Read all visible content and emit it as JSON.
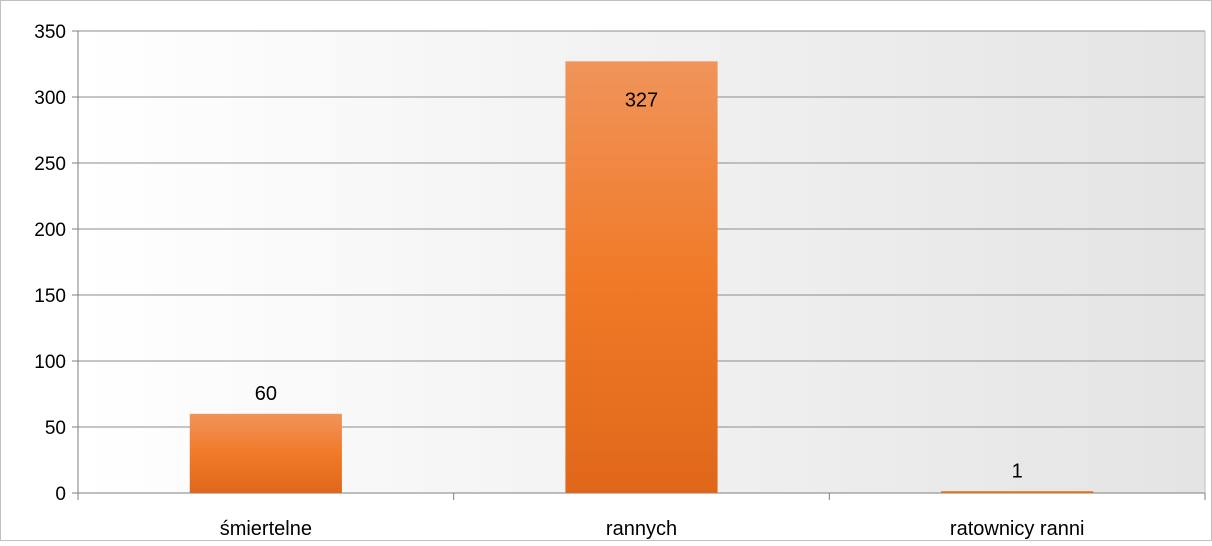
{
  "chart_data": {
    "type": "bar",
    "categories": [
      "śmiertelne",
      "rannych",
      "ratownicy ranni"
    ],
    "values": [
      60,
      327,
      1
    ],
    "data_labels": [
      "60",
      "327",
      "1"
    ],
    "title": "",
    "xlabel": "",
    "ylabel": "",
    "ylim": [
      0,
      350
    ],
    "yticks": [
      0,
      50,
      100,
      150,
      200,
      250,
      300,
      350
    ],
    "ytick_labels": [
      "0",
      "50",
      "100",
      "150",
      "200",
      "250",
      "300",
      "350"
    ],
    "grid": true,
    "legend": "none",
    "colors": {
      "bar_top": "#f0945a",
      "bar_mid": "#f07a28",
      "bar_bottom": "#e0671a",
      "grid": "#8c8c8c",
      "plot_background_left": "#ffffff",
      "plot_background_right": "#e4e4e4",
      "frame": "#7f7f7f"
    }
  }
}
